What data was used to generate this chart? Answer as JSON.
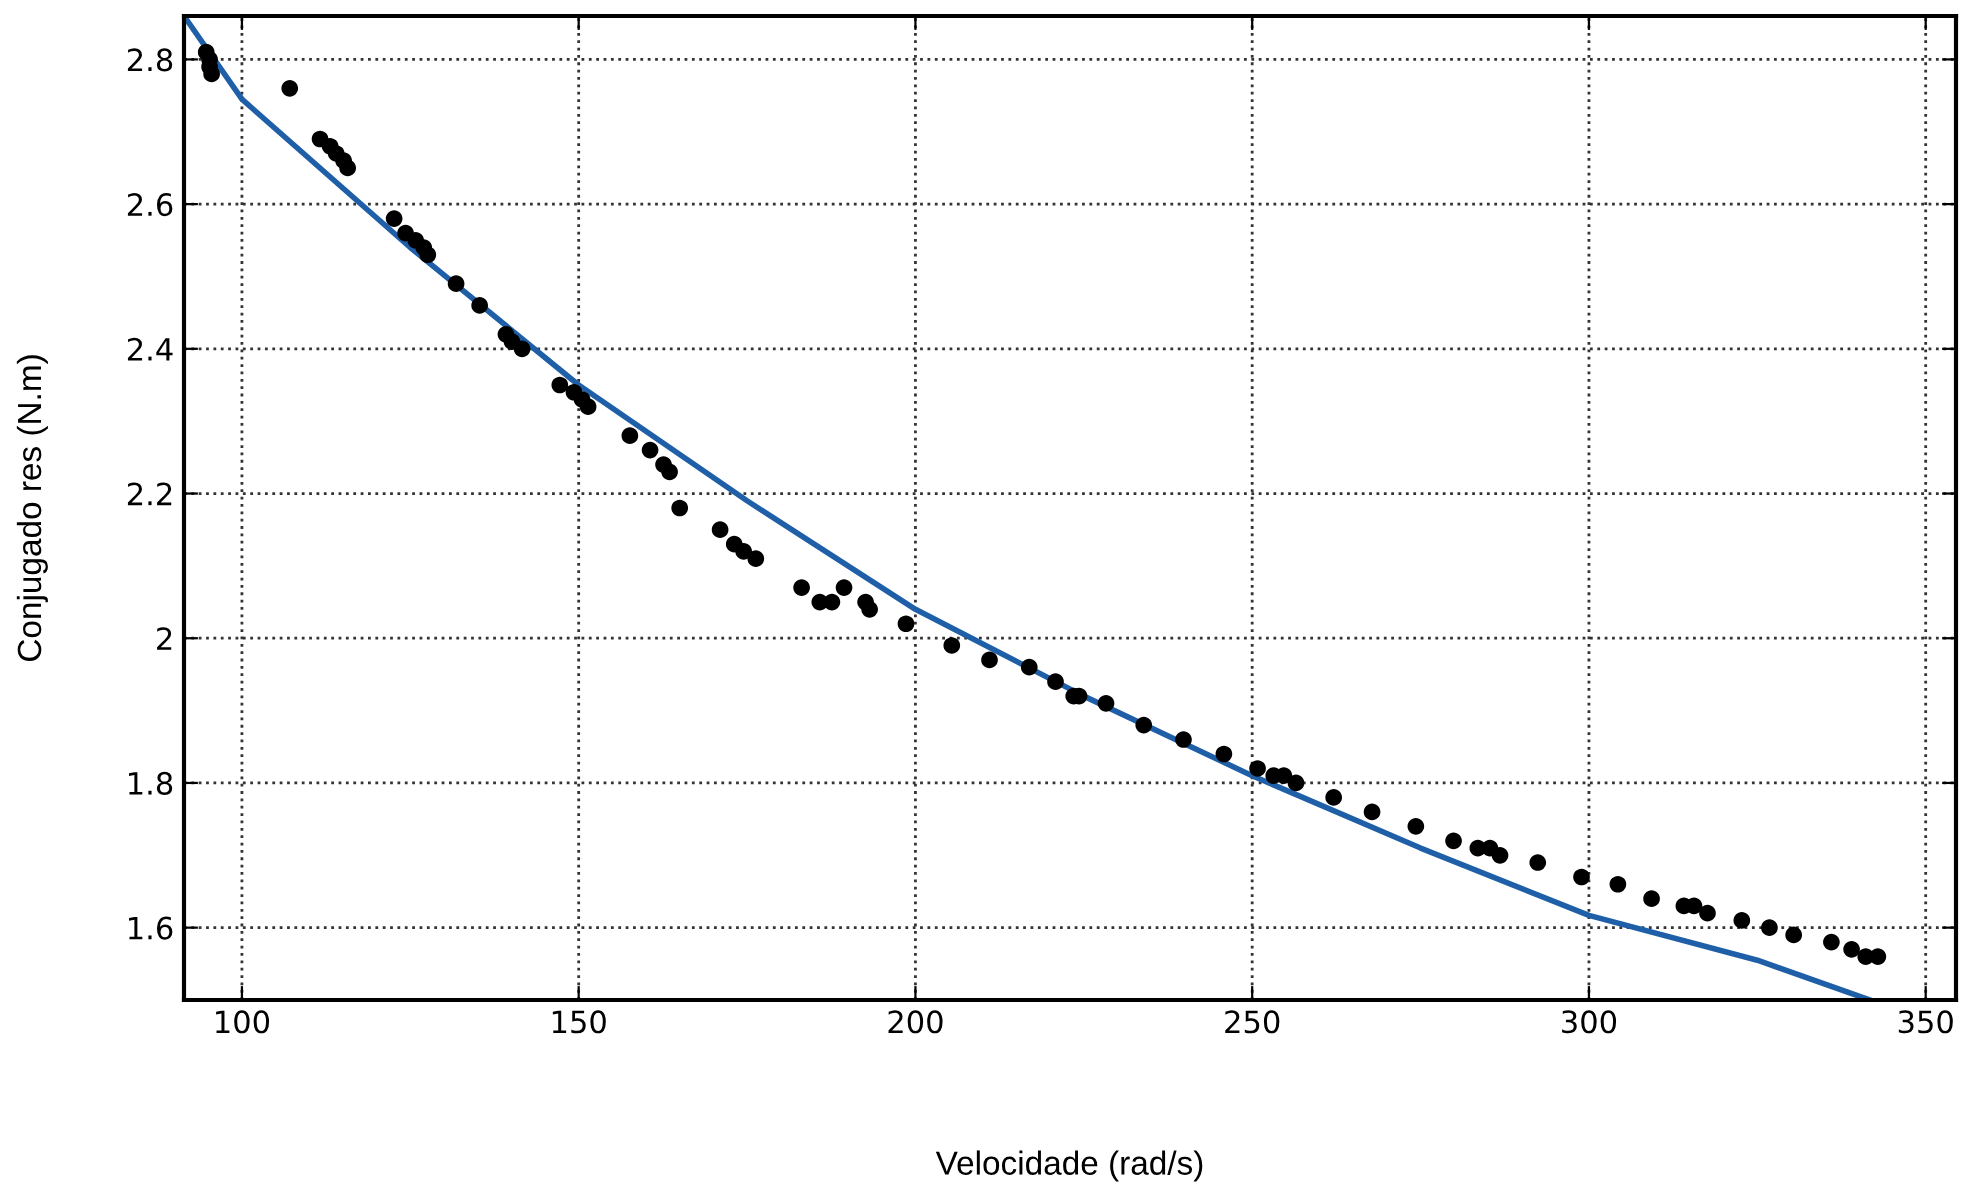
{
  "chart_data": {
    "type": "scatter",
    "xlabel": "Velocidade (rad/s)",
    "ylabel": "Conjugado res (N.m)",
    "xlim": [
      91.4,
      354.5
    ],
    "ylim": [
      1.5,
      2.86
    ],
    "xticks": [
      100,
      150,
      200,
      250,
      300,
      350
    ],
    "yticks": [
      1.6,
      1.8,
      2,
      2.2,
      2.4,
      2.6,
      2.8
    ],
    "grid": true,
    "series": [
      {
        "color": "#000000",
        "marker": "circle",
        "x": [
          94.7,
          95.2,
          95.2,
          95.5,
          107.1,
          111.6,
          113.1,
          114.0,
          115.1,
          115.7,
          122.6,
          124.3,
          125.8,
          127.0,
          127.6,
          131.8,
          135.3,
          139.2,
          140.1,
          141.6,
          147.2,
          149.3,
          150.5,
          151.4,
          157.6,
          160.6,
          162.6,
          163.5,
          165.0,
          171.0,
          173.1,
          174.5,
          176.3,
          183.1,
          185.8,
          187.6,
          189.4,
          192.6,
          193.2,
          198.6,
          205.4,
          211.0,
          216.9,
          220.8,
          223.5,
          224.3,
          228.3,
          233.9,
          239.8,
          245.8,
          250.8,
          253.2,
          254.7,
          256.5,
          262.1,
          267.8,
          274.3,
          279.9,
          283.5,
          285.3,
          286.8,
          292.4,
          298.9,
          304.3,
          309.3,
          314.1,
          315.6,
          317.6,
          322.7,
          326.8,
          330.4,
          336.0,
          339.0,
          341.1,
          342.9
        ],
        "values": [
          2.81,
          2.8,
          2.79,
          2.78,
          2.76,
          2.69,
          2.68,
          2.67,
          2.66,
          2.65,
          2.58,
          2.56,
          2.55,
          2.54,
          2.53,
          2.49,
          2.46,
          2.42,
          2.41,
          2.4,
          2.35,
          2.34,
          2.33,
          2.32,
          2.28,
          2.26,
          2.24,
          2.23,
          2.18,
          2.15,
          2.13,
          2.12,
          2.11,
          2.07,
          2.05,
          2.05,
          2.07,
          2.05,
          2.04,
          2.02,
          1.99,
          1.97,
          1.96,
          1.94,
          1.92,
          1.92,
          1.91,
          1.88,
          1.86,
          1.84,
          1.82,
          1.81,
          1.81,
          1.8,
          1.78,
          1.76,
          1.74,
          1.72,
          1.71,
          1.71,
          1.7,
          1.69,
          1.67,
          1.66,
          1.64,
          1.63,
          1.63,
          1.62,
          1.61,
          1.6,
          1.59,
          1.58,
          1.57,
          1.56,
          1.56
        ]
      },
      {
        "type": "line",
        "marker": "none",
        "color": "#1f5fa8",
        "x": [
          91.4,
          100,
          125,
          150,
          175,
          200,
          225,
          250,
          275,
          300,
          325,
          341.7
        ],
        "values": [
          2.86,
          2.745,
          2.54,
          2.35,
          2.19,
          2.04,
          1.92,
          1.81,
          1.71,
          1.617,
          1.555,
          1.5
        ]
      }
    ]
  }
}
